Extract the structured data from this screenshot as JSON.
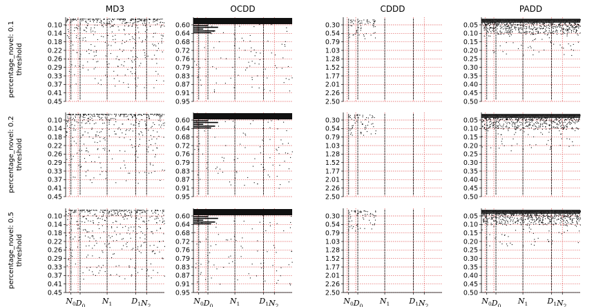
{
  "chart_data": {
    "type": "scatter",
    "columns": [
      "MD3",
      "OCDD",
      "CDDD",
      "PADD"
    ],
    "row_axis_title": "threshold",
    "rows": [
      {
        "label": "percentage_novel: 0.1"
      },
      {
        "label": "percentage_novel: 0.2"
      },
      {
        "label": "percentage_novel: 0.5"
      }
    ],
    "x_markers": [
      {
        "main": "N",
        "sub": "0"
      },
      {
        "main": "D",
        "sub": "0"
      },
      {
        "main": "N",
        "sub": "1"
      },
      {
        "main": "D",
        "sub": "1"
      },
      {
        "main": "N",
        "sub": "2"
      }
    ],
    "y_ticks": {
      "MD3": [
        "0.10",
        "0.14",
        "0.18",
        "0.22",
        "0.26",
        "0.29",
        "0.33",
        "0.37",
        "0.41",
        "0.45"
      ],
      "OCDD": [
        "0.60",
        "0.64",
        "0.68",
        "0.72",
        "0.76",
        "0.79",
        "0.83",
        "0.87",
        "0.91",
        "0.95"
      ],
      "CDDD": [
        "0.30",
        "0.54",
        "0.79",
        "1.03",
        "1.28",
        "1.52",
        "1.77",
        "2.01",
        "2.26",
        "2.50"
      ],
      "PADD": [
        "0.05",
        "0.10",
        "0.15",
        "0.20",
        "0.25",
        "0.30",
        "0.35",
        "0.40",
        "0.45",
        "0.50"
      ]
    },
    "grid": "red dotted at marker positions and y ticks",
    "colors": {
      "points": "#000000",
      "grid": "#e05050"
    }
  }
}
